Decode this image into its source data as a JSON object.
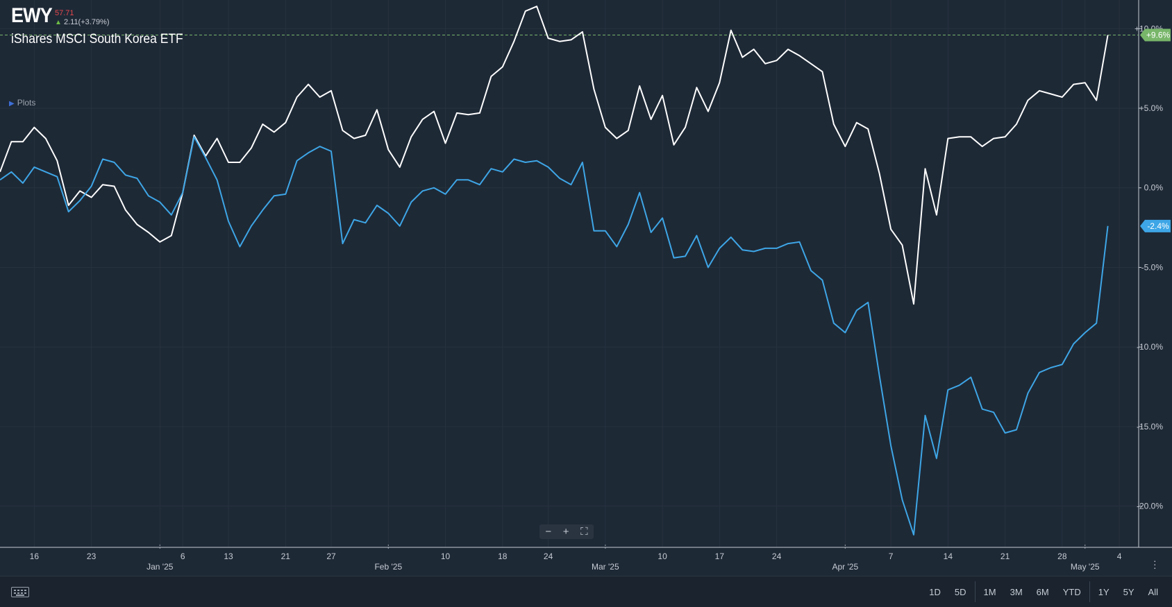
{
  "header": {
    "ticker": "EWY",
    "price": "57.71",
    "change": "2.11(+3.79%)",
    "company": "iShares MSCI South Korea ETF",
    "plots_label": "Plots"
  },
  "colors": {
    "background": "#1e2936",
    "grid": "#27323f",
    "primary_series": "#ffffff",
    "compare_series": "#3ea6e6",
    "badge_positive": "#78b66a",
    "badge_compare": "#3ea6e6",
    "price_red": "#e5484d",
    "up_green": "#6dbd45"
  },
  "zoom_controls": {
    "zoom_out": "−",
    "zoom_in": "+",
    "fullscreen": "⛶"
  },
  "range_buttons": [
    "1D",
    "5D",
    "1M",
    "3M",
    "6M",
    "YTD",
    "1Y",
    "5Y",
    "All"
  ],
  "chart_data": {
    "type": "line",
    "ylim": [
      -22.5,
      11.8
    ],
    "y_ticks": [
      "+10.0%",
      "+5.0%",
      "0.0%",
      "-5.0%",
      "-10.0%",
      "-15.0%",
      "-20.0%"
    ],
    "y_tick_values": [
      10,
      5,
      0,
      -5,
      -10,
      -15,
      -20
    ],
    "grid": true,
    "x_ticks": [
      {
        "label": "16",
        "index": 3
      },
      {
        "label": "23",
        "index": 8
      },
      {
        "label": "Jan '25",
        "index": 14,
        "major": true
      },
      {
        "label": "6",
        "index": 16
      },
      {
        "label": "13",
        "index": 20
      },
      {
        "label": "21",
        "index": 25
      },
      {
        "label": "27",
        "index": 29
      },
      {
        "label": "Feb '25",
        "index": 34,
        "major": true
      },
      {
        "label": "10",
        "index": 39
      },
      {
        "label": "18",
        "index": 44
      },
      {
        "label": "24",
        "index": 48
      },
      {
        "label": "Mar '25",
        "index": 53,
        "major": true
      },
      {
        "label": "10",
        "index": 58
      },
      {
        "label": "17",
        "index": 63
      },
      {
        "label": "24",
        "index": 68
      },
      {
        "label": "Apr '25",
        "index": 74,
        "major": true
      },
      {
        "label": "7",
        "index": 78
      },
      {
        "label": "14",
        "index": 83
      },
      {
        "label": "21",
        "index": 88
      },
      {
        "label": "28",
        "index": 93
      },
      {
        "label": "May '25",
        "index": 95,
        "major": true
      },
      {
        "label": "4",
        "index": 98
      }
    ],
    "reference_line": 9.6,
    "series": [
      {
        "values": [
          1.0,
          2.9,
          2.9,
          3.8,
          3.1,
          1.7,
          -1.1,
          -0.2,
          -0.6,
          0.2,
          0.1,
          -1.4,
          -2.3,
          -2.8,
          -3.4,
          -3.0,
          -0.3,
          3.3,
          2.0,
          3.1,
          1.6,
          1.6,
          2.5,
          4.0,
          3.5,
          4.1,
          5.7,
          6.5,
          5.7,
          6.1,
          3.6,
          3.1,
          3.3,
          4.9,
          2.4,
          1.3,
          3.2,
          4.3,
          4.8,
          2.8,
          4.7,
          4.6,
          4.7,
          7.0,
          7.6,
          9.2,
          11.1,
          11.4,
          9.4,
          9.2,
          9.3,
          9.8,
          6.2,
          3.8,
          3.1,
          3.6,
          6.4,
          4.3,
          5.8,
          2.7,
          3.8,
          6.3,
          4.8,
          6.6,
          9.9,
          8.2,
          8.7,
          7.8,
          8.0,
          8.7,
          8.3,
          7.8,
          7.3,
          4.0,
          2.6,
          4.1,
          3.7,
          0.9,
          -2.6,
          -3.6,
          -7.3,
          1.2,
          -1.7,
          3.1,
          3.2,
          3.2,
          2.6,
          3.1,
          3.2,
          4.0,
          5.5,
          6.1,
          5.9,
          5.7,
          6.5,
          6.6,
          5.5,
          9.6
        ],
        "end_label": "+9.6%"
      },
      {
        "values": [
          0.5,
          1.0,
          0.3,
          1.3,
          1.0,
          0.7,
          -1.5,
          -0.8,
          0.1,
          1.8,
          1.6,
          0.8,
          0.6,
          -0.5,
          -0.9,
          -1.7,
          -0.3,
          3.2,
          1.9,
          0.5,
          -2.1,
          -3.7,
          -2.4,
          -1.4,
          -0.5,
          -0.4,
          1.7,
          2.2,
          2.6,
          2.3,
          -3.5,
          -2.0,
          -2.2,
          -1.1,
          -1.6,
          -2.4,
          -0.9,
          -0.2,
          0.0,
          -0.4,
          0.5,
          0.5,
          0.2,
          1.2,
          1.0,
          1.8,
          1.6,
          1.7,
          1.3,
          0.6,
          0.2,
          1.6,
          -2.7,
          -2.7,
          -3.7,
          -2.3,
          -0.3,
          -2.8,
          -1.9,
          -4.4,
          -4.3,
          -3.0,
          -5.0,
          -3.8,
          -3.1,
          -3.9,
          -4.0,
          -3.8,
          -3.8,
          -3.5,
          -3.4,
          -5.2,
          -5.8,
          -8.5,
          -9.1,
          -7.7,
          -7.2,
          -11.8,
          -16.2,
          -19.6,
          -21.8,
          -14.3,
          -17.0,
          -12.7,
          -12.4,
          -11.9,
          -13.9,
          -14.1,
          -15.4,
          -15.2,
          -12.9,
          -11.6,
          -11.3,
          -11.1,
          -9.8,
          -9.1,
          -8.5,
          -2.4
        ],
        "end_label": "-2.4%"
      }
    ]
  }
}
